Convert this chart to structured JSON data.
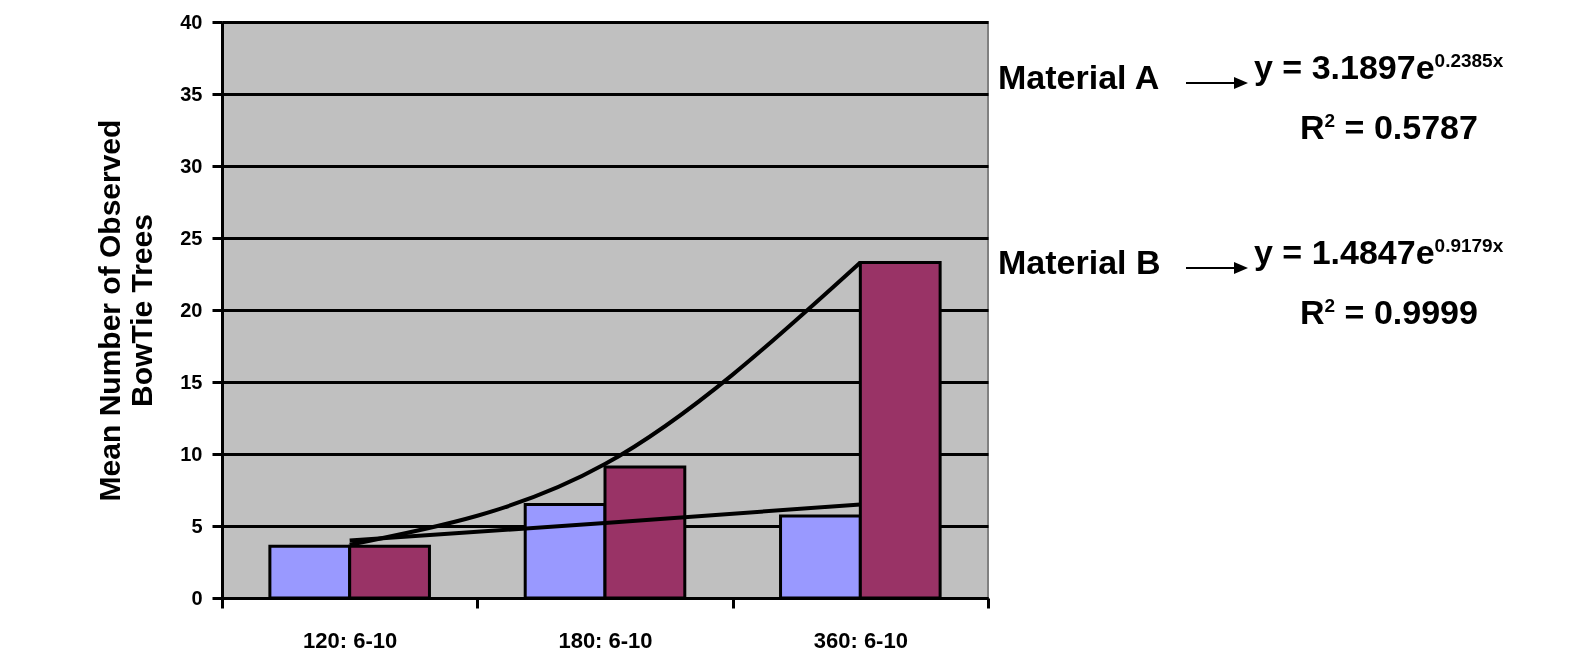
{
  "chart_data": {
    "type": "bar",
    "ylabel": "Mean Number of Observed\nBowTie Trees",
    "categories": [
      "120: 6-10",
      "180: 6-10",
      "360: 6-10"
    ],
    "series": [
      {
        "color": "#9999ff",
        "values": [
          3.6,
          6.5,
          5.7
        ]
      },
      {
        "color": "#993366",
        "values": [
          3.6,
          9.1,
          23.3
        ]
      },
      {
        "type": "line",
        "color": "#000000",
        "values": [
          4.0,
          5.2,
          6.5
        ]
      },
      {
        "type": "line",
        "color": "#000000",
        "values": [
          3.7,
          9.3,
          23.3
        ]
      }
    ],
    "ylim": [
      0,
      40
    ],
    "yticks": [
      0,
      5,
      10,
      15,
      20,
      25,
      30,
      35,
      40
    ],
    "grid": "y",
    "annotations": [
      "Material A",
      "y = 3.1897e$^{0.2385x}$",
      "R$^{2}$ = 0.5787",
      "Material B",
      "y = 1.4847e$^{0.9179x}$",
      "R$^{2}$ = 0.9999"
    ]
  }
}
